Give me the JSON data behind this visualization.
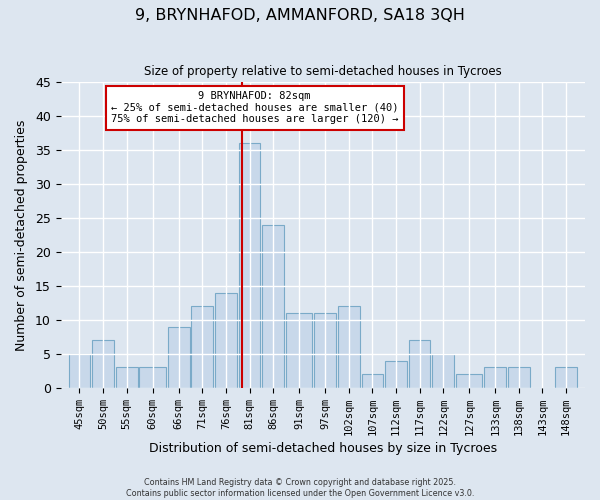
{
  "title": "9, BRYNHAFOD, AMMANFORD, SA18 3QH",
  "subtitle": "Size of property relative to semi-detached houses in Tycroes",
  "xlabel": "Distribution of semi-detached houses by size in Tycroes",
  "ylabel": "Number of semi-detached properties",
  "bar_labels": [
    "45sqm",
    "50sqm",
    "55sqm",
    "60sqm",
    "66sqm",
    "71sqm",
    "76sqm",
    "81sqm",
    "86sqm",
    "91sqm",
    "97sqm",
    "102sqm",
    "107sqm",
    "112sqm",
    "117sqm",
    "122sqm",
    "127sqm",
    "133sqm",
    "138sqm",
    "143sqm",
    "148sqm"
  ],
  "bar_values": [
    5,
    7,
    3,
    3,
    9,
    12,
    14,
    36,
    24,
    11,
    11,
    12,
    2,
    4,
    7,
    5,
    2,
    3,
    3,
    0,
    3
  ],
  "bar_edges": [
    45,
    50,
    55,
    60,
    66,
    71,
    76,
    81,
    86,
    91,
    97,
    102,
    107,
    112,
    117,
    122,
    127,
    133,
    138,
    143,
    148,
    153
  ],
  "bar_color": "#c8d8ea",
  "bar_edgecolor": "#7aaac8",
  "vline_x": 82,
  "vline_color": "#cc0000",
  "annotation_title": "9 BRYNHAFOD: 82sqm",
  "annotation_line1": "← 25% of semi-detached houses are smaller (40)",
  "annotation_line2": "75% of semi-detached houses are larger (120) →",
  "annotation_box_edgecolor": "#cc0000",
  "ylim": [
    0,
    45
  ],
  "yticks": [
    0,
    5,
    10,
    15,
    20,
    25,
    30,
    35,
    40,
    45
  ],
  "bg_color": "#dde6f0",
  "grid_color": "#ffffff",
  "footer_line1": "Contains HM Land Registry data © Crown copyright and database right 2025.",
  "footer_line2": "Contains public sector information licensed under the Open Government Licence v3.0."
}
